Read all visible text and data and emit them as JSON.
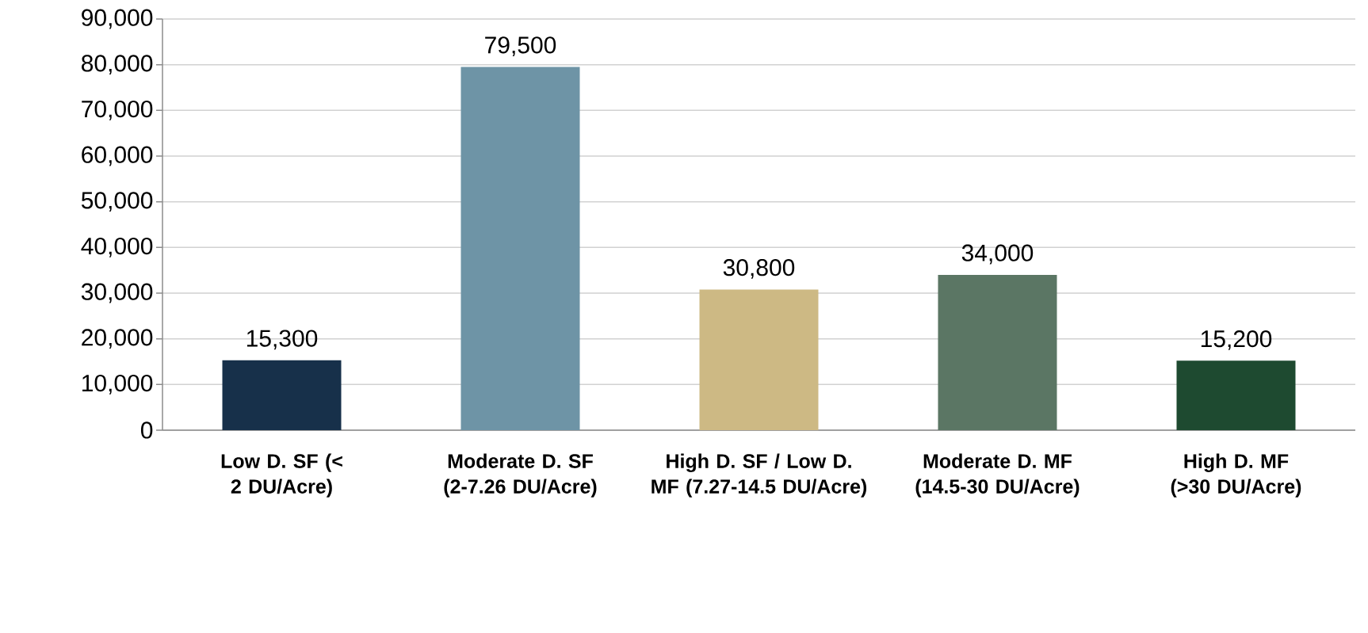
{
  "chart_data": {
    "type": "bar",
    "categories": [
      "Low D. SF (< 2 DU/Acre)",
      "Moderate D. SF (2-7.26 DU/Acre)",
      "High D. SF / Low D. MF (7.27-14.5 DU/Acre)",
      "Moderate D. MF (14.5-30 DU/Acre)",
      "High D. MF (>30 DU/Acre)"
    ],
    "values": [
      15300,
      79500,
      30800,
      34000,
      15200
    ],
    "value_labels": [
      "15,300",
      "79,500",
      "30,800",
      "34,000",
      "15,200"
    ],
    "colors": [
      "#17304a",
      "#6e94a6",
      "#cdb984",
      "#5b7664",
      "#1e4a30"
    ],
    "ylim": [
      0,
      90000
    ],
    "yticks": [
      {
        "value": 0,
        "label": "0"
      },
      {
        "value": 10000,
        "label": "10,000"
      },
      {
        "value": 20000,
        "label": "20,000"
      },
      {
        "value": 30000,
        "label": "30,000"
      },
      {
        "value": 40000,
        "label": "40,000"
      },
      {
        "value": 50000,
        "label": "50,000"
      },
      {
        "value": 60000,
        "label": "60,000"
      },
      {
        "value": 70000,
        "label": "70,000"
      },
      {
        "value": 80000,
        "label": "80,000"
      },
      {
        "value": 90000,
        "label": "90,000"
      }
    ],
    "grid": "y"
  }
}
